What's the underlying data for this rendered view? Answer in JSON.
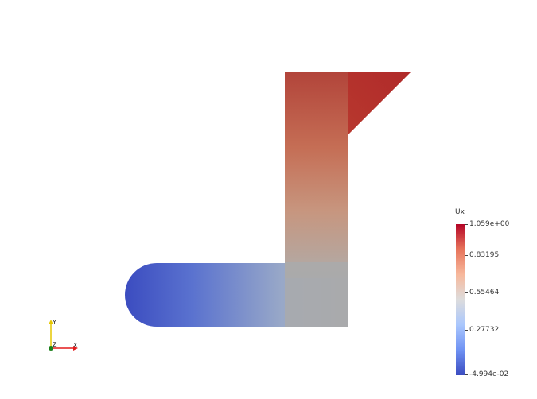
{
  "field": {
    "name": "Ux",
    "range": [
      -0.04994,
      1.059
    ],
    "ticks": [
      {
        "value": 1.059,
        "label": "1.059e+00"
      },
      {
        "value": 0.83195,
        "label": "0.83195"
      },
      {
        "value": 0.55464,
        "label": "0.55464"
      },
      {
        "value": 0.27732,
        "label": "0.27732"
      },
      {
        "value": -0.04994,
        "label": "-4.994e-02"
      }
    ],
    "colormap": [
      "#3b4cc0",
      "#6f92f3",
      "#aac7fd",
      "#dddcdc",
      "#f7b89c",
      "#e7745b",
      "#b40426"
    ]
  },
  "axes": {
    "x_label": "X",
    "y_label": "Y",
    "z_label": "Z",
    "x_color": "#e31a1c",
    "y_color": "#e6c700",
    "z_color": "#1a7f1a"
  }
}
